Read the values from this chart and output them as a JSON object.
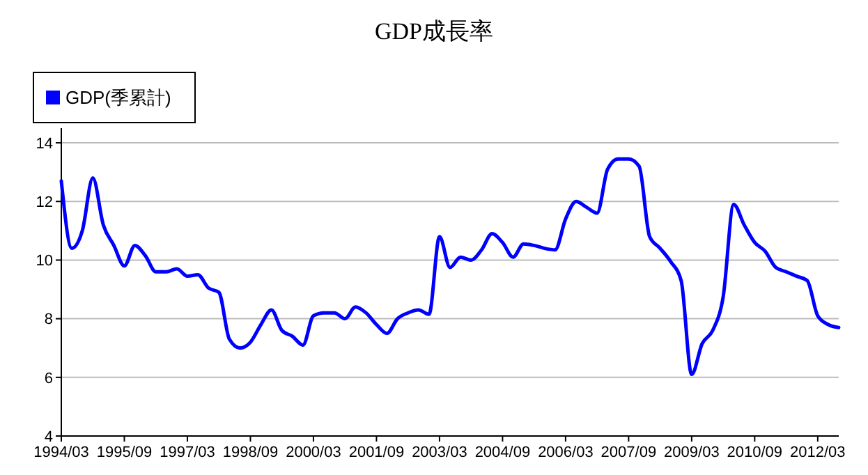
{
  "chart_data": {
    "type": "line",
    "title": "GDP成長率",
    "categories": [
      "1994/03",
      null,
      null,
      null,
      null,
      null,
      "1995/09",
      null,
      null,
      null,
      null,
      null,
      "1997/03",
      null,
      null,
      null,
      null,
      null,
      "1998/09",
      null,
      null,
      null,
      null,
      null,
      "2000/03",
      null,
      null,
      null,
      null,
      null,
      "2001/09",
      null,
      null,
      null,
      null,
      null,
      "2003/03",
      null,
      null,
      null,
      null,
      null,
      "2004/09",
      null,
      null,
      null,
      null,
      null,
      "2006/03",
      null,
      null,
      null,
      null,
      null,
      "2007/09",
      null,
      null,
      null,
      null,
      null,
      "2009/03",
      null,
      null,
      null,
      null,
      null,
      "2010/09",
      null,
      null,
      null,
      null,
      null,
      "2012/03",
      null,
      null
    ],
    "series": [
      {
        "name": "GDP(季累計)",
        "color": "#0000ff",
        "values": [
          12.7,
          10.4,
          11.0,
          12.8,
          11.2,
          10.5,
          9.8,
          10.5,
          10.15,
          9.6,
          9.6,
          9.7,
          9.45,
          9.5,
          9.05,
          8.9,
          7.3,
          7.0,
          7.2,
          7.8,
          8.3,
          7.6,
          7.4,
          7.1,
          8.1,
          8.2,
          8.2,
          8.0,
          8.4,
          8.2,
          7.8,
          7.5,
          8.0,
          8.2,
          8.3,
          8.15,
          10.8,
          9.75,
          10.1,
          10.0,
          10.35,
          10.9,
          10.6,
          10.1,
          10.55,
          10.5,
          10.4,
          10.35,
          11.4,
          12.0,
          11.8,
          11.6,
          13.1,
          13.45,
          13.45,
          13.2,
          10.8,
          10.4,
          9.95,
          9.3,
          6.1,
          7.15,
          7.6,
          8.75,
          11.9,
          11.2,
          10.6,
          10.3,
          9.75,
          9.6,
          9.45,
          9.3,
          8.1,
          7.8,
          7.7
        ]
      }
    ],
    "ylim": [
      4,
      14.5
    ],
    "yticks": [
      4,
      6,
      8,
      10,
      12,
      14
    ],
    "grid": "y",
    "legend": "top left",
    "marker": "none",
    "line_style": "solid"
  }
}
